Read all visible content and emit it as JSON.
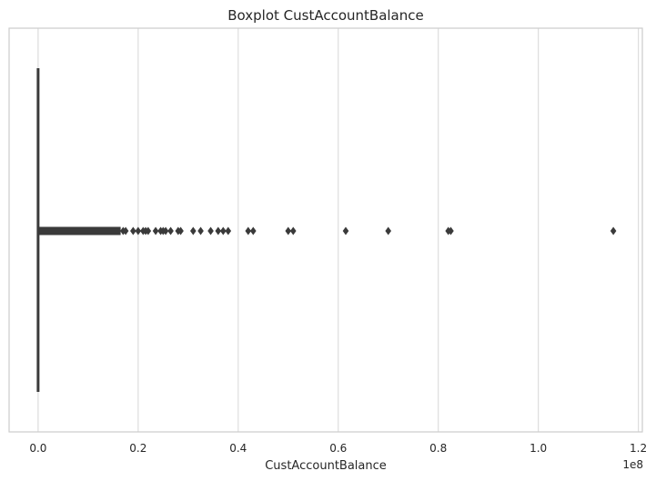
{
  "chart_data": {
    "type": "boxplot",
    "orientation": "horizontal",
    "title": "Boxplot CustAccountBalance",
    "xlabel": "CustAccountBalance",
    "ylabel": "",
    "x_offset_label": "1e8",
    "xlim": [
      -0.058,
      1.208
    ],
    "x_ticks": [
      0.0,
      0.2,
      0.4,
      0.6,
      0.8,
      1.0,
      1.2
    ],
    "x_tick_labels": [
      "0.0",
      "0.2",
      "0.4",
      "0.6",
      "0.8",
      "1.0",
      "1.2"
    ],
    "grid": "vertical",
    "box": {
      "min": 0.0,
      "q1": 0.0,
      "median": 0.0,
      "q3": 0.0,
      "max": 0.0
    },
    "outlier_dense_range": [
      0.0,
      0.165
    ],
    "outliers": [
      0.17,
      0.175,
      0.19,
      0.2,
      0.21,
      0.215,
      0.22,
      0.235,
      0.245,
      0.25,
      0.255,
      0.265,
      0.28,
      0.285,
      0.31,
      0.325,
      0.345,
      0.36,
      0.37,
      0.38,
      0.42,
      0.43,
      0.5,
      0.51,
      0.615,
      0.7,
      0.82,
      0.825,
      1.15
    ],
    "colors": {
      "box": "#4c72b0",
      "line": "#3a3a3a",
      "outlier": "#3a3a3a",
      "grid": "#dddddd",
      "frame": "#cccccc"
    }
  }
}
